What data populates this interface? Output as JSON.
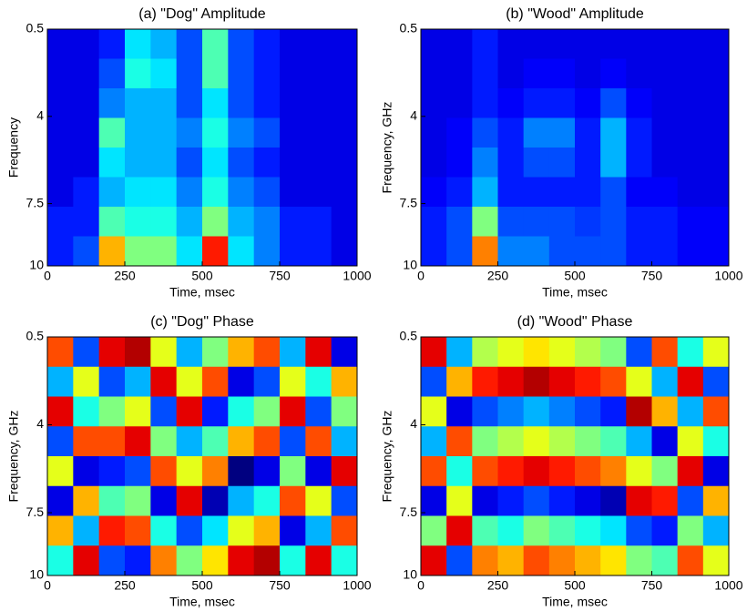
{
  "chart_data": [
    {
      "type": "heatmap",
      "title": "(a) \"Dog\" Amplitude",
      "xlabel": "Time, msec",
      "ylabel": "Frequency",
      "xlim": [
        0,
        1000
      ],
      "xticks": [
        0,
        250,
        500,
        750,
        1000
      ],
      "ylim": [
        0.5,
        10
      ],
      "yticks": [
        0.5,
        4,
        7.5,
        10
      ],
      "y_reversed": true,
      "colormap": "jet",
      "clim": [
        0,
        1
      ],
      "z": [
        [
          0.1,
          0.1,
          0.15,
          0.35,
          0.3,
          0.2,
          0.45,
          0.2,
          0.15,
          0.1,
          0.1,
          0.1
        ],
        [
          0.1,
          0.1,
          0.2,
          0.4,
          0.35,
          0.2,
          0.45,
          0.2,
          0.15,
          0.1,
          0.1,
          0.1
        ],
        [
          0.1,
          0.1,
          0.25,
          0.3,
          0.3,
          0.2,
          0.35,
          0.2,
          0.15,
          0.1,
          0.1,
          0.1
        ],
        [
          0.1,
          0.1,
          0.45,
          0.3,
          0.3,
          0.25,
          0.4,
          0.25,
          0.2,
          0.1,
          0.1,
          0.1
        ],
        [
          0.1,
          0.1,
          0.35,
          0.3,
          0.3,
          0.2,
          0.35,
          0.2,
          0.15,
          0.1,
          0.1,
          0.1
        ],
        [
          0.1,
          0.15,
          0.3,
          0.35,
          0.35,
          0.25,
          0.4,
          0.25,
          0.2,
          0.1,
          0.1,
          0.1
        ],
        [
          0.15,
          0.15,
          0.45,
          0.4,
          0.4,
          0.3,
          0.5,
          0.3,
          0.25,
          0.15,
          0.15,
          0.1
        ],
        [
          0.15,
          0.2,
          0.7,
          0.5,
          0.5,
          0.35,
          0.85,
          0.35,
          0.25,
          0.15,
          0.15,
          0.1
        ]
      ]
    },
    {
      "type": "heatmap",
      "title": "(b) \"Wood\" Amplitude",
      "xlabel": "Time, msec",
      "ylabel": "Frequency, GHz",
      "xlim": [
        0,
        1000
      ],
      "xticks": [
        0,
        250,
        500,
        750,
        1000
      ],
      "ylim": [
        0.5,
        10
      ],
      "yticks": [
        0.5,
        4,
        7.5,
        10
      ],
      "y_reversed": true,
      "colormap": "jet",
      "clim": [
        0,
        1
      ],
      "z": [
        [
          0.1,
          0.1,
          0.15,
          0.1,
          0.1,
          0.1,
          0.1,
          0.1,
          0.1,
          0.1,
          0.1,
          0.1
        ],
        [
          0.1,
          0.1,
          0.15,
          0.1,
          0.12,
          0.12,
          0.1,
          0.12,
          0.1,
          0.1,
          0.1,
          0.1
        ],
        [
          0.1,
          0.1,
          0.15,
          0.12,
          0.15,
          0.15,
          0.12,
          0.2,
          0.12,
          0.1,
          0.1,
          0.1
        ],
        [
          0.1,
          0.12,
          0.2,
          0.15,
          0.25,
          0.25,
          0.15,
          0.3,
          0.15,
          0.1,
          0.1,
          0.1
        ],
        [
          0.1,
          0.12,
          0.25,
          0.15,
          0.2,
          0.2,
          0.15,
          0.3,
          0.15,
          0.1,
          0.1,
          0.1
        ],
        [
          0.12,
          0.15,
          0.3,
          0.15,
          0.15,
          0.15,
          0.15,
          0.2,
          0.12,
          0.12,
          0.1,
          0.1
        ],
        [
          0.15,
          0.2,
          0.5,
          0.2,
          0.2,
          0.2,
          0.18,
          0.2,
          0.15,
          0.15,
          0.12,
          0.12
        ],
        [
          0.15,
          0.2,
          0.75,
          0.25,
          0.25,
          0.2,
          0.2,
          0.2,
          0.15,
          0.15,
          0.12,
          0.12
        ]
      ]
    },
    {
      "type": "heatmap",
      "title": "(c) \"Dog\" Phase",
      "xlabel": "Time, msec",
      "ylabel": "Frequency, GHz",
      "xlim": [
        0,
        1000
      ],
      "xticks": [
        0,
        250,
        500,
        750,
        1000
      ],
      "ylim": [
        0.5,
        10
      ],
      "yticks": [
        0.5,
        4,
        7.5,
        10
      ],
      "y_reversed": true,
      "colormap": "jet",
      "clim": [
        0,
        1
      ],
      "z": [
        [
          0.8,
          0.2,
          0.9,
          0.95,
          0.6,
          0.3,
          0.5,
          0.7,
          0.8,
          0.3,
          0.9,
          0.1
        ],
        [
          0.3,
          0.6,
          0.2,
          0.3,
          0.9,
          0.6,
          0.8,
          0.1,
          0.2,
          0.6,
          0.4,
          0.7
        ],
        [
          0.9,
          0.4,
          0.5,
          0.6,
          0.2,
          0.9,
          0.15,
          0.4,
          0.5,
          0.9,
          0.2,
          0.5
        ],
        [
          0.2,
          0.8,
          0.8,
          0.9,
          0.5,
          0.3,
          0.45,
          0.7,
          0.8,
          0.2,
          0.8,
          0.3
        ],
        [
          0.6,
          0.1,
          0.15,
          0.2,
          0.8,
          0.6,
          0.75,
          0.0,
          0.1,
          0.5,
          0.1,
          0.9
        ],
        [
          0.1,
          0.7,
          0.45,
          0.5,
          0.1,
          0.9,
          0.05,
          0.3,
          0.4,
          0.8,
          0.6,
          0.2
        ],
        [
          0.7,
          0.3,
          0.85,
          0.8,
          0.4,
          0.2,
          0.35,
          0.6,
          0.7,
          0.1,
          0.3,
          0.8
        ],
        [
          0.4,
          0.9,
          0.2,
          0.15,
          0.75,
          0.5,
          0.65,
          0.9,
          0.95,
          0.4,
          0.9,
          0.4
        ]
      ]
    },
    {
      "type": "heatmap",
      "title": "(d) \"Wood\" Phase",
      "xlabel": "Time, msec",
      "ylabel": "Frequency, GHz",
      "xlim": [
        0,
        1000
      ],
      "xticks": [
        0,
        250,
        500,
        750,
        1000
      ],
      "ylim": [
        0.5,
        10
      ],
      "yticks": [
        0.5,
        4,
        7.5,
        10
      ],
      "y_reversed": true,
      "colormap": "jet",
      "clim": [
        0,
        1
      ],
      "z": [
        [
          0.9,
          0.3,
          0.55,
          0.6,
          0.65,
          0.6,
          0.55,
          0.5,
          0.2,
          0.8,
          0.4,
          0.6
        ],
        [
          0.2,
          0.7,
          0.85,
          0.9,
          0.95,
          0.9,
          0.85,
          0.8,
          0.6,
          0.3,
          0.9,
          0.2
        ],
        [
          0.6,
          0.1,
          0.2,
          0.25,
          0.3,
          0.25,
          0.2,
          0.15,
          0.95,
          0.7,
          0.3,
          0.8
        ],
        [
          0.3,
          0.8,
          0.5,
          0.55,
          0.6,
          0.55,
          0.5,
          0.45,
          0.3,
          0.1,
          0.6,
          0.4
        ],
        [
          0.8,
          0.4,
          0.8,
          0.85,
          0.9,
          0.85,
          0.8,
          0.75,
          0.6,
          0.5,
          0.9,
          0.1
        ],
        [
          0.1,
          0.6,
          0.1,
          0.15,
          0.2,
          0.15,
          0.1,
          0.05,
          0.9,
          0.85,
          0.2,
          0.7
        ],
        [
          0.5,
          0.9,
          0.45,
          0.4,
          0.5,
          0.45,
          0.4,
          0.35,
          0.2,
          0.15,
          0.5,
          0.3
        ],
        [
          0.9,
          0.2,
          0.75,
          0.7,
          0.8,
          0.75,
          0.7,
          0.65,
          0.5,
          0.45,
          0.8,
          0.6
        ]
      ]
    }
  ]
}
